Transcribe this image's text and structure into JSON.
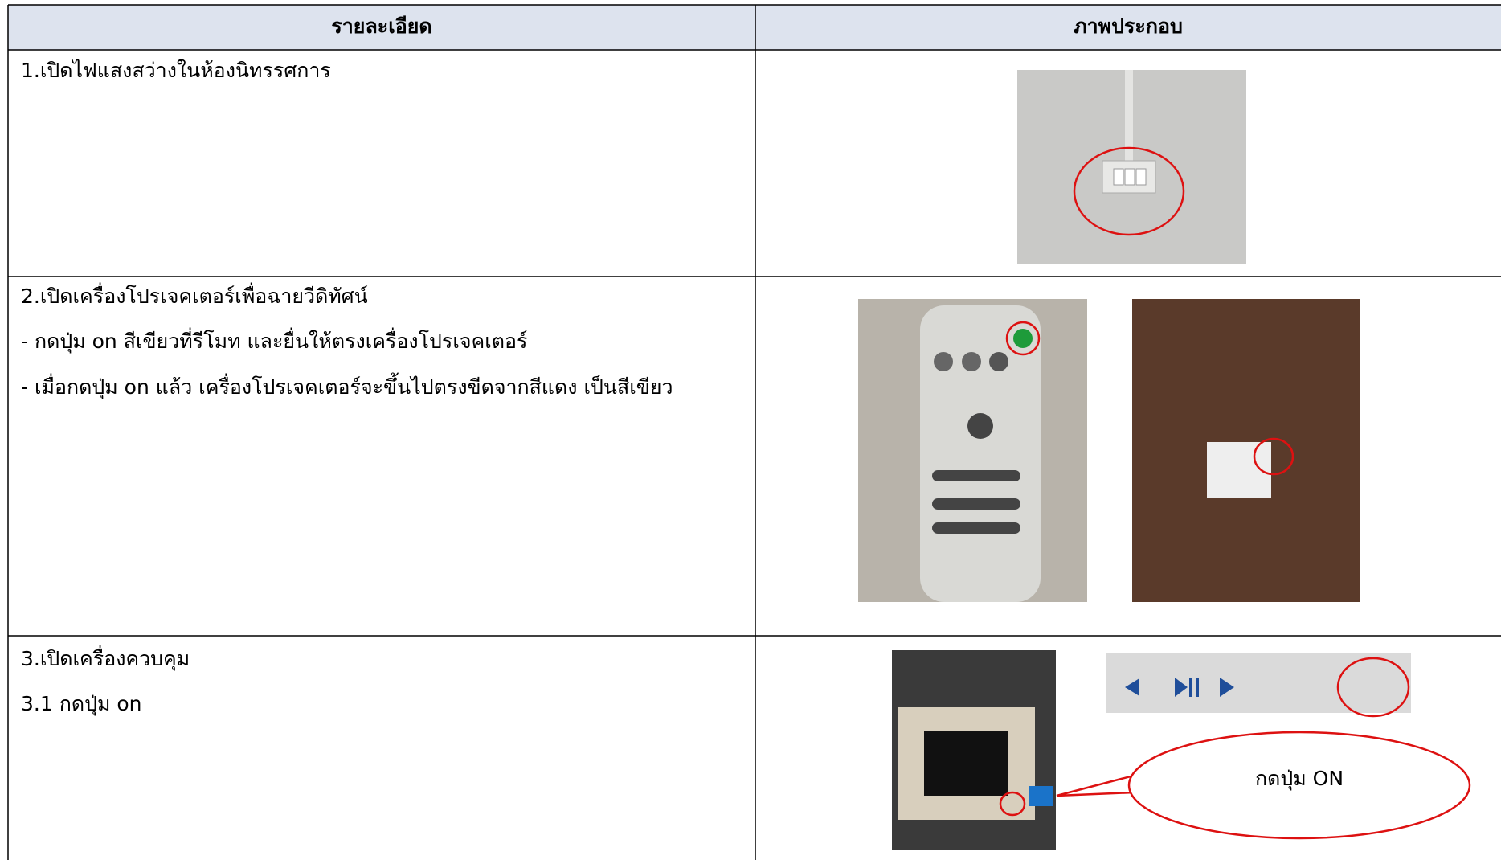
{
  "table": {
    "header": [
      "รายละเอียด",
      "ภาพประกอบ"
    ],
    "rows": [
      {
        "lines": [
          "1.เปิดไฟแสงสว่างในห้องนิทรรศการ"
        ]
      },
      {
        "lines": [
          "2.เปิดเครื่องโปรเจคเตอร์เพื่อฉายวีดิทัศน์",
          "- กดปุ่ม on สีเขียวที่รีโมท และยื่นให้ตรงเครื่องโปรเจคเตอร์",
          "- เมื่อกดปุ่ม on แล้ว เครื่องโปรเจคเตอร์จะขึ้นไปตรงขีดจากสีแดง เป็นสีเขียว"
        ]
      },
      {
        "lines": [
          "3.เปิดเครื่องควบคุม",
          "3.1 กดปุ่ม on"
        ]
      }
    ]
  },
  "callout": "กดปุ่ม ON"
}
